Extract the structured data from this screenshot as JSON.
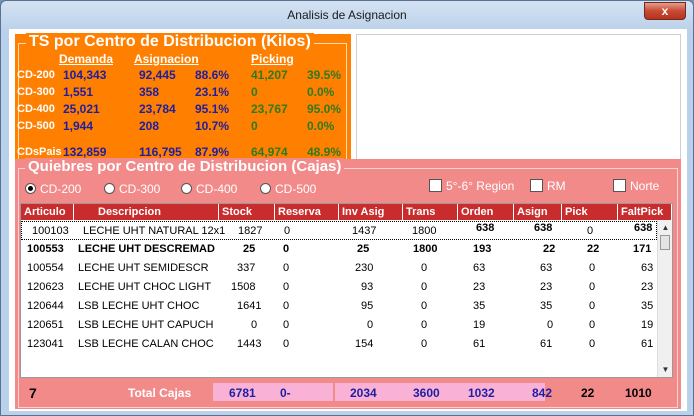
{
  "window": {
    "title": "Analisis de Asignacion",
    "close_label": "x"
  },
  "ts_panel": {
    "title": "TS por Centro de Distribucion (Kilos)",
    "headers": {
      "demanda": "Demanda",
      "asignacion": "Asignacion",
      "picking": "Picking"
    },
    "rows": [
      {
        "label": "CD-200",
        "demanda": "104,343",
        "asignacion": "92,445",
        "asig_pct": "88.6%",
        "picking": "41,207",
        "pick_pct": "39.5%"
      },
      {
        "label": "CD-300",
        "demanda": "1,551",
        "asignacion": "358",
        "asig_pct": "23.1%",
        "picking": "0",
        "pick_pct": "0.0%"
      },
      {
        "label": "CD-400",
        "demanda": "25,021",
        "asignacion": "23,784",
        "asig_pct": "95.1%",
        "picking": "23,767",
        "pick_pct": "95.0%"
      },
      {
        "label": "CD-500",
        "demanda": "1,944",
        "asignacion": "208",
        "asig_pct": "10.7%",
        "picking": "0",
        "pick_pct": "0.0%"
      },
      {
        "label": "CDsPais",
        "demanda": "132,859",
        "asignacion": "116,795",
        "asig_pct": "87.9%",
        "picking": "64,974",
        "pick_pct": "48.9%"
      }
    ]
  },
  "quiebres": {
    "title": "Quiebres por Centro de Distribucion (Cajas)",
    "radios": [
      {
        "label": "CD-200",
        "checked": true
      },
      {
        "label": "CD-300",
        "checked": false
      },
      {
        "label": "CD-400",
        "checked": false
      },
      {
        "label": "CD-500",
        "checked": false
      }
    ],
    "checks": [
      {
        "label": "5°-6° Region"
      },
      {
        "label": "RM"
      },
      {
        "label": "Norte"
      }
    ],
    "columns": [
      "Articulo",
      "Descripcion",
      "Stock",
      "Reserva",
      "Inv Asig",
      "Trans",
      "Orden",
      "Asign",
      "Pick",
      "FaltPick"
    ],
    "rows": [
      [
        "100103",
        "LECHE UHT NATURAL 12x1",
        "1827",
        "0",
        "1437",
        "1800",
        "638",
        "638",
        "0",
        "638"
      ],
      [
        "100553",
        "LECHE UHT DESCREMAD",
        "25",
        "0",
        "25",
        "1800",
        "193",
        "22",
        "22",
        "171"
      ],
      [
        "100554",
        "LECHE UHT SEMIDESCR",
        "337",
        "0",
        "230",
        "0",
        "63",
        "63",
        "0",
        "63"
      ],
      [
        "120623",
        "LECHE UHT CHOC LIGHT",
        "1508",
        "0",
        "93",
        "0",
        "23",
        "23",
        "0",
        "23"
      ],
      [
        "120644",
        "LSB LECHE UHT CHOC",
        "1641",
        "0",
        "95",
        "0",
        "35",
        "35",
        "0",
        "35"
      ],
      [
        "120651",
        "LSB LECHE UHT CAPUCH",
        "0",
        "0",
        "0",
        "0",
        "19",
        "0",
        "0",
        "19"
      ],
      [
        "123041",
        "LSB LECHE CALAN CHOC",
        "1443",
        "0",
        "154",
        "0",
        "61",
        "61",
        "0",
        "61"
      ]
    ],
    "totals": {
      "count": "7",
      "label": "Total Cajas",
      "stock": "6781",
      "reserva": "0-",
      "inv_asig": "2034",
      "trans": "3600",
      "orden": "1032",
      "asign": "842",
      "pick": "22",
      "faltpick": "1010"
    }
  }
}
